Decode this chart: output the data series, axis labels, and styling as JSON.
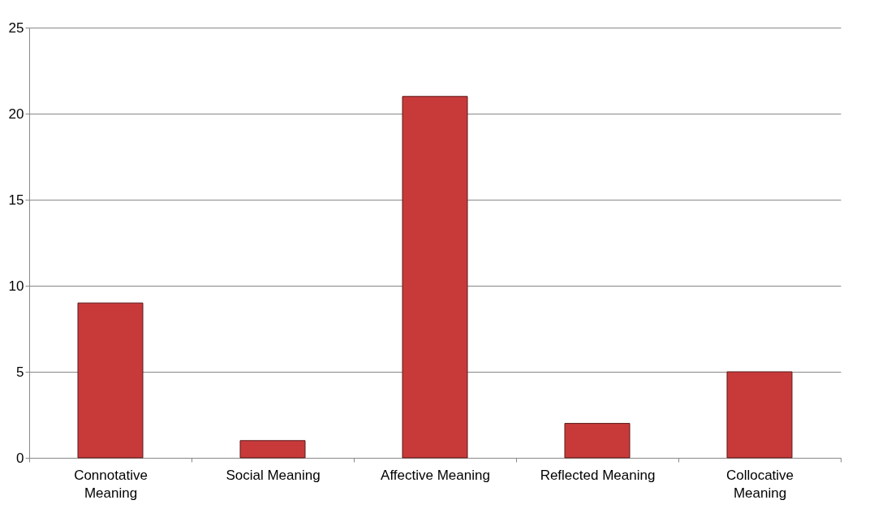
{
  "chart_data": {
    "type": "bar",
    "categories": [
      "Connotative Meaning",
      "Social Meaning",
      "Affective Meaning",
      "Reflected Meaning",
      "Collocative Meaning"
    ],
    "values": [
      9,
      1,
      21,
      2,
      5
    ],
    "color": "#c83a3a",
    "ylim": [
      0,
      25
    ],
    "yticks": [
      0,
      5,
      10,
      15,
      20,
      25
    ],
    "grid": "y"
  }
}
